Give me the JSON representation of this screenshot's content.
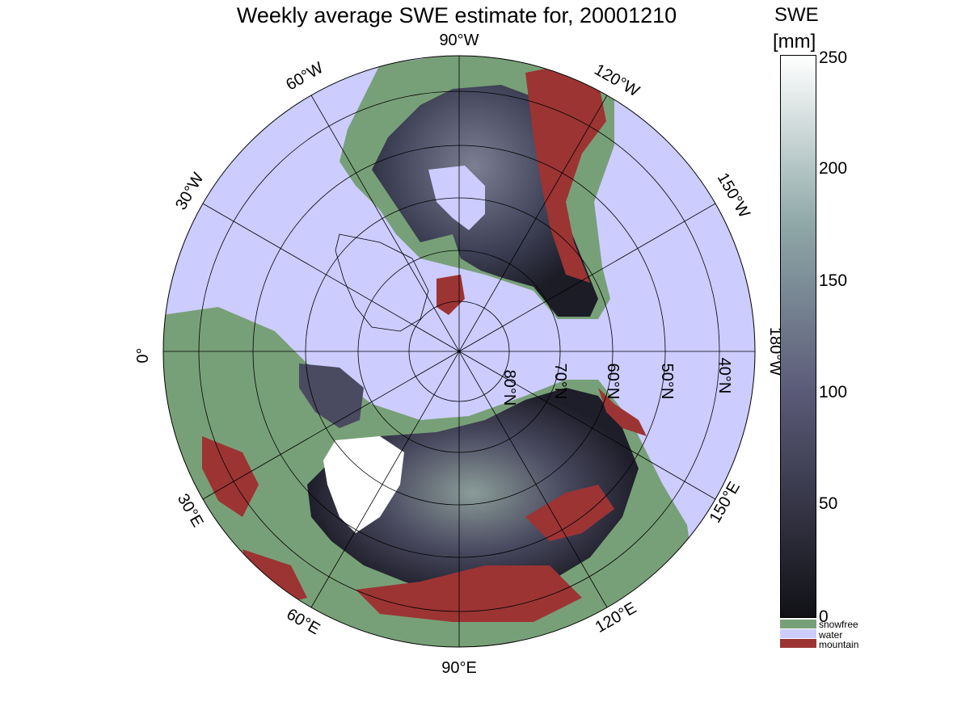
{
  "title": "Weekly average SWE estimate for, 20001210",
  "colors": {
    "water": "#ccccff",
    "snowfree": "#78a078",
    "mountain": "#9c3434",
    "snow_low": "#111116",
    "snow_mid": "#5a5a78",
    "snow_high": "#ffffff"
  },
  "colorbar": {
    "title": "SWE",
    "unit": "[mm]",
    "min": 0,
    "max": 250,
    "ticks": [
      "0",
      "50",
      "100",
      "150",
      "200",
      "250"
    ]
  },
  "legend": [
    {
      "label": "snowfree",
      "color": "#78a078"
    },
    {
      "label": "water",
      "color": "#ccccff"
    },
    {
      "label": "mountain",
      "color": "#9c3434"
    }
  ],
  "map": {
    "projection": "north polar stereographic",
    "longitude_labels": [
      "0°",
      "30°W",
      "60°W",
      "90°W",
      "120°W",
      "150°W",
      "180°W",
      "150°E",
      "120°E",
      "90°E",
      "60°E",
      "30°E"
    ],
    "latitude_labels": [
      "80°N",
      "70°N",
      "60°N",
      "50°N",
      "40°N"
    ]
  }
}
